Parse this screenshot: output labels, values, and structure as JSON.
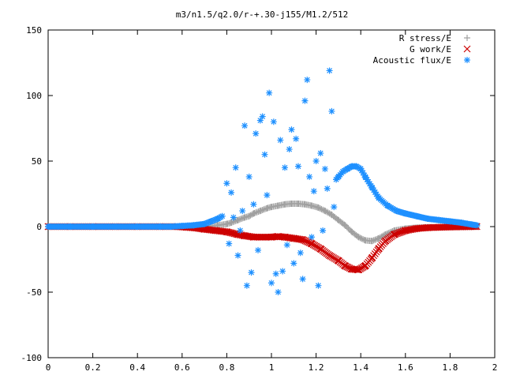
{
  "chart_data": {
    "type": "scatter",
    "title": "m3/n1.5/q2.0/r-+.30-j155/M1.2/512",
    "xlabel": "",
    "ylabel": "",
    "xlim": [
      0,
      2
    ],
    "ylim": [
      -100,
      150
    ],
    "xticks": [
      "0",
      "0.2",
      "0.4",
      "0.6",
      "0.8",
      "1",
      "1.2",
      "1.4",
      "1.6",
      "1.8",
      "2"
    ],
    "yticks": [
      "-100",
      "-50",
      "0",
      "50",
      "100",
      "150"
    ],
    "grid": false,
    "legend_position": "top-right",
    "series": [
      {
        "name": "R stress/E",
        "color": "#a0a0a0",
        "marker": "plus",
        "points": [
          [
            0.0,
            0
          ],
          [
            0.1,
            0
          ],
          [
            0.2,
            0
          ],
          [
            0.3,
            0
          ],
          [
            0.4,
            0
          ],
          [
            0.5,
            0
          ],
          [
            0.6,
            0
          ],
          [
            0.7,
            0
          ],
          [
            0.76,
            1
          ],
          [
            0.8,
            2
          ],
          [
            0.82,
            3
          ],
          [
            0.85,
            5
          ],
          [
            0.88,
            7
          ],
          [
            0.9,
            8
          ],
          [
            0.92,
            10
          ],
          [
            0.95,
            12
          ],
          [
            0.98,
            14
          ],
          [
            1.0,
            15
          ],
          [
            1.03,
            16
          ],
          [
            1.06,
            17
          ],
          [
            1.09,
            17.5
          ],
          [
            1.12,
            17.5
          ],
          [
            1.15,
            17
          ],
          [
            1.18,
            16
          ],
          [
            1.21,
            14.5
          ],
          [
            1.24,
            12
          ],
          [
            1.27,
            9
          ],
          [
            1.3,
            5
          ],
          [
            1.33,
            1
          ],
          [
            1.36,
            -4
          ],
          [
            1.39,
            -8
          ],
          [
            1.42,
            -10.5
          ],
          [
            1.45,
            -11
          ],
          [
            1.48,
            -9
          ],
          [
            1.51,
            -6
          ],
          [
            1.55,
            -3
          ],
          [
            1.6,
            -1.5
          ],
          [
            1.65,
            -0.8
          ],
          [
            1.7,
            -0.5
          ],
          [
            1.8,
            -0.2
          ],
          [
            1.92,
            0
          ]
        ]
      },
      {
        "name": "G work/E",
        "color": "#cc0000",
        "marker": "cross",
        "points": [
          [
            0.0,
            0
          ],
          [
            0.1,
            0
          ],
          [
            0.2,
            0
          ],
          [
            0.3,
            0
          ],
          [
            0.4,
            0
          ],
          [
            0.5,
            0
          ],
          [
            0.58,
            0
          ],
          [
            0.62,
            -0.5
          ],
          [
            0.66,
            -1
          ],
          [
            0.7,
            -2
          ],
          [
            0.75,
            -3
          ],
          [
            0.8,
            -4
          ],
          [
            0.85,
            -6
          ],
          [
            0.88,
            -7
          ],
          [
            0.92,
            -8
          ],
          [
            0.96,
            -8
          ],
          [
            1.0,
            -8
          ],
          [
            1.03,
            -7.5
          ],
          [
            1.06,
            -8
          ],
          [
            1.1,
            -9
          ],
          [
            1.14,
            -10
          ],
          [
            1.18,
            -13
          ],
          [
            1.22,
            -17
          ],
          [
            1.26,
            -22
          ],
          [
            1.3,
            -26
          ],
          [
            1.33,
            -30
          ],
          [
            1.36,
            -32.5
          ],
          [
            1.39,
            -33
          ],
          [
            1.42,
            -30
          ],
          [
            1.45,
            -24
          ],
          [
            1.48,
            -17
          ],
          [
            1.51,
            -11
          ],
          [
            1.55,
            -6
          ],
          [
            1.6,
            -3
          ],
          [
            1.65,
            -1.5
          ],
          [
            1.7,
            -0.8
          ],
          [
            1.8,
            -0.3
          ],
          [
            1.92,
            0
          ]
        ]
      },
      {
        "name": "Acoustic flux/E",
        "color": "#1e90ff",
        "marker": "star",
        "points": [
          [
            0.0,
            0
          ],
          [
            0.1,
            0
          ],
          [
            0.2,
            0
          ],
          [
            0.3,
            0
          ],
          [
            0.4,
            0
          ],
          [
            0.5,
            0
          ],
          [
            0.55,
            0
          ],
          [
            0.6,
            0.5
          ],
          [
            0.65,
            1
          ],
          [
            0.7,
            2
          ],
          [
            0.73,
            4
          ],
          [
            0.76,
            6
          ],
          [
            0.78,
            8
          ],
          [
            0.8,
            33
          ],
          [
            0.81,
            -13
          ],
          [
            0.82,
            26
          ],
          [
            0.83,
            7
          ],
          [
            0.84,
            45
          ],
          [
            0.85,
            -22
          ],
          [
            0.86,
            -3
          ],
          [
            0.87,
            12
          ],
          [
            0.88,
            77
          ],
          [
            0.89,
            -45
          ],
          [
            0.9,
            38
          ],
          [
            0.91,
            -35
          ],
          [
            0.92,
            17
          ],
          [
            0.93,
            71
          ],
          [
            0.94,
            -18
          ],
          [
            0.95,
            81
          ],
          [
            0.96,
            84
          ],
          [
            0.97,
            55
          ],
          [
            0.98,
            24
          ],
          [
            0.99,
            102
          ],
          [
            1.0,
            -43
          ],
          [
            1.01,
            80
          ],
          [
            1.02,
            -36
          ],
          [
            1.03,
            -50
          ],
          [
            1.04,
            66
          ],
          [
            1.05,
            -34
          ],
          [
            1.06,
            45
          ],
          [
            1.07,
            -14
          ],
          [
            1.08,
            59
          ],
          [
            1.09,
            74
          ],
          [
            1.1,
            -28
          ],
          [
            1.11,
            67
          ],
          [
            1.12,
            46
          ],
          [
            1.13,
            -20
          ],
          [
            1.14,
            -40
          ],
          [
            1.15,
            96
          ],
          [
            1.16,
            112
          ],
          [
            1.17,
            38
          ],
          [
            1.18,
            -8
          ],
          [
            1.19,
            27
          ],
          [
            1.2,
            50
          ],
          [
            1.21,
            -45
          ],
          [
            1.22,
            56
          ],
          [
            1.23,
            -3
          ],
          [
            1.24,
            44
          ],
          [
            1.25,
            29
          ],
          [
            1.26,
            119
          ],
          [
            1.27,
            88
          ],
          [
            1.28,
            15
          ],
          [
            1.29,
            36
          ],
          [
            1.3,
            38
          ],
          [
            1.32,
            42
          ],
          [
            1.34,
            44
          ],
          [
            1.36,
            46
          ],
          [
            1.38,
            46
          ],
          [
            1.4,
            44
          ],
          [
            1.42,
            38
          ],
          [
            1.45,
            30
          ],
          [
            1.48,
            22
          ],
          [
            1.52,
            16
          ],
          [
            1.56,
            12
          ],
          [
            1.6,
            10
          ],
          [
            1.65,
            8
          ],
          [
            1.7,
            6
          ],
          [
            1.75,
            5
          ],
          [
            1.8,
            4
          ],
          [
            1.85,
            3
          ],
          [
            1.9,
            1.5
          ],
          [
            1.92,
            1
          ]
        ]
      }
    ]
  }
}
